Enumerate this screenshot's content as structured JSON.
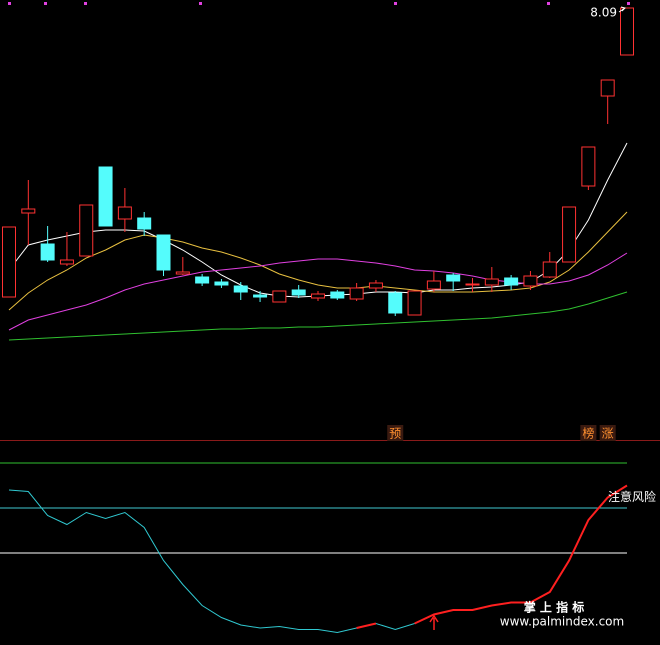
{
  "chart_data": [
    {
      "type": "candlestick",
      "open": [
        5.2,
        6.04,
        5.73,
        5.53,
        5.61,
        6.5,
        5.98,
        5.99,
        5.82,
        5.43,
        5.4,
        5.35,
        5.31,
        5.22,
        5.15,
        5.27,
        5.19,
        5.25,
        5.18,
        5.29,
        5.24,
        5.02,
        5.28,
        5.42,
        5.32,
        5.32,
        5.39,
        5.31,
        5.4,
        5.55,
        6.31,
        7.21,
        7.62
      ],
      "high": [
        5.9,
        6.37,
        5.91,
        5.85,
        6.12,
        6.5,
        6.29,
        6.05,
        5.82,
        5.6,
        5.43,
        5.38,
        5.35,
        5.26,
        5.26,
        5.32,
        5.26,
        5.27,
        5.34,
        5.37,
        5.26,
        5.26,
        5.46,
        5.44,
        5.39,
        5.5,
        5.42,
        5.46,
        5.65,
        6.1,
        6.7,
        7.37,
        8.09
      ],
      "low": [
        5.2,
        5.72,
        5.55,
        5.51,
        5.61,
        5.91,
        5.85,
        5.81,
        5.41,
        5.42,
        5.31,
        5.29,
        5.17,
        5.15,
        5.15,
        5.19,
        5.16,
        5.17,
        5.16,
        5.25,
        5.01,
        5.02,
        5.25,
        5.26,
        5.25,
        5.25,
        5.27,
        5.27,
        5.39,
        5.55,
        6.27,
        6.93,
        7.62
      ],
      "close": [
        5.9,
        6.08,
        5.57,
        5.57,
        6.12,
        5.91,
        6.1,
        5.88,
        5.47,
        5.45,
        5.34,
        5.32,
        5.25,
        5.2,
        5.26,
        5.22,
        5.23,
        5.19,
        5.29,
        5.34,
        5.04,
        5.26,
        5.36,
        5.36,
        5.33,
        5.38,
        5.32,
        5.41,
        5.55,
        6.1,
        6.7,
        7.37,
        8.09
      ],
      "up_color": "#ff3232",
      "down_color": "#54fcfc",
      "ylim": [
        3.77,
        8.17
      ],
      "series": [
        {
          "color": "#ffffff",
          "values": [
            5.47,
            5.72,
            5.77,
            5.81,
            5.85,
            5.87,
            5.87,
            5.86,
            5.77,
            5.67,
            5.55,
            5.42,
            5.32,
            5.24,
            5.21,
            5.2,
            5.21,
            5.22,
            5.23,
            5.25,
            5.25,
            5.24,
            5.27,
            5.27,
            5.29,
            5.3,
            5.32,
            5.35,
            5.47,
            5.67,
            5.97,
            6.37,
            6.74
          ]
        },
        {
          "color": "#e8c040",
          "values": [
            5.07,
            5.24,
            5.37,
            5.47,
            5.59,
            5.67,
            5.77,
            5.82,
            5.79,
            5.75,
            5.69,
            5.65,
            5.59,
            5.52,
            5.43,
            5.37,
            5.32,
            5.29,
            5.29,
            5.31,
            5.29,
            5.27,
            5.25,
            5.25,
            5.25,
            5.26,
            5.27,
            5.29,
            5.35,
            5.47,
            5.65,
            5.85,
            6.05
          ]
        },
        {
          "color": "#e040e0",
          "values": [
            4.87,
            4.97,
            5.02,
            5.07,
            5.12,
            5.19,
            5.27,
            5.33,
            5.37,
            5.41,
            5.45,
            5.47,
            5.49,
            5.51,
            5.54,
            5.56,
            5.58,
            5.58,
            5.56,
            5.54,
            5.51,
            5.47,
            5.46,
            5.44,
            5.41,
            5.37,
            5.35,
            5.33,
            5.33,
            5.36,
            5.42,
            5.52,
            5.64
          ]
        },
        {
          "color": "#30c030",
          "values": [
            4.77,
            4.78,
            4.79,
            4.8,
            4.81,
            4.82,
            4.83,
            4.84,
            4.85,
            4.86,
            4.87,
            4.88,
            4.88,
            4.89,
            4.89,
            4.9,
            4.9,
            4.91,
            4.92,
            4.93,
            4.94,
            4.95,
            4.96,
            4.97,
            4.98,
            4.99,
            5.01,
            5.03,
            5.05,
            5.08,
            5.13,
            5.19,
            5.25
          ]
        }
      ],
      "price_label": {
        "index": 32,
        "text": "8.09"
      },
      "annotations": [
        {
          "index": 20,
          "text": "预"
        },
        {
          "index": 30,
          "text": "榜"
        },
        {
          "index": 31,
          "text": "涨"
        }
      ]
    },
    {
      "type": "line",
      "ylim": [
        -40,
        95
      ],
      "hlines": [
        {
          "value": 80,
          "color": "#30c030"
        },
        {
          "value": 50,
          "color": "#40c8d0"
        },
        {
          "value": 20,
          "color": "#ffffff"
        }
      ],
      "series": [
        {
          "color": "#30c8d0",
          "values": [
            62,
            61,
            45,
            39,
            47,
            43,
            47,
            37,
            15,
            -1,
            -15,
            -23,
            -28,
            -30,
            -29,
            -31,
            -31,
            -33,
            -30,
            -27,
            -31,
            -27,
            null,
            null,
            null,
            null,
            null,
            null,
            null,
            null,
            null,
            null,
            null
          ]
        },
        {
          "color": "#ff2020",
          "values": [
            null,
            null,
            null,
            null,
            null,
            null,
            null,
            null,
            null,
            null,
            null,
            null,
            null,
            null,
            null,
            null,
            null,
            null,
            -30,
            -27,
            null,
            -27,
            -21,
            -18,
            -18,
            -15,
            -13,
            -13,
            -6,
            15,
            42,
            57,
            65
          ]
        }
      ],
      "annotation": {
        "index": 31,
        "value": 57,
        "text": "注意风险"
      }
    }
  ],
  "watermark": {
    "title": "掌 上 指 标",
    "url": "www.palmindex.com"
  }
}
